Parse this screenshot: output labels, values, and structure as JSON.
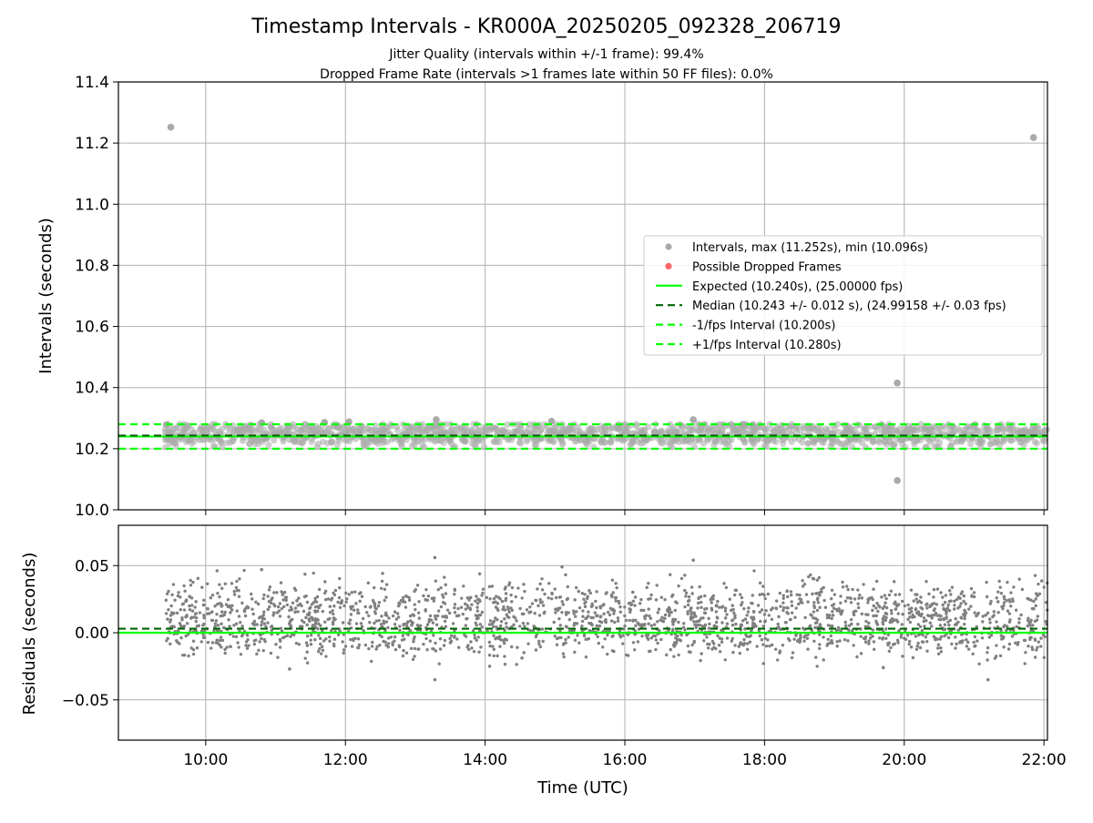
{
  "figure": {
    "title": "Timestamp Intervals - KR000A_20250205_092328_206719",
    "subtitle_1": "Jitter Quality (intervals within +/-1 frame): 99.4%",
    "subtitle_2": "Dropped Frame Rate (intervals >1 frames late within 50 FF files): 0.0%"
  },
  "colors": {
    "points": "#808080",
    "scatter_light": "#aaaaaa",
    "dropped": "#ff6666",
    "expected": "#00ff00",
    "median": "#006400",
    "bounds": "#00ff00",
    "grid": "#b0b0b0"
  },
  "chart_data": [
    {
      "type": "scatter",
      "ylabel": "Intervals (seconds)",
      "ylim": [
        10.0,
        11.4
      ],
      "yticks": [
        "10.0",
        "10.2",
        "10.4",
        "10.6",
        "10.8",
        "11.0",
        "11.2",
        "11.4"
      ],
      "ytick_values": [
        10.0,
        10.2,
        10.4,
        10.6,
        10.8,
        11.0,
        11.2,
        11.4
      ],
      "grid": true,
      "legend_position": "center-right",
      "legend": [
        "Intervals, max (11.252s), min (10.096s)",
        "Possible Dropped Frames",
        "Expected (10.240s), (25.00000 fps)",
        "Median (10.243 +/- 0.012 s), (24.99158 +/- 0.03 fps)",
        "-1/fps Interval (10.200s)",
        "+1/fps Interval (10.280s)"
      ],
      "hlines": {
        "expected": 10.24,
        "median": 10.243,
        "minus_1fps": 10.2,
        "plus_1fps": 10.28
      },
      "x_range_hours": [
        9.42,
        22.05
      ],
      "band_range": [
        10.205,
        10.28
      ],
      "outliers": [
        {
          "t": 9.5,
          "v": 11.252
        },
        {
          "t": 21.85,
          "v": 11.218
        },
        {
          "t": 19.9,
          "v": 10.415
        },
        {
          "t": 19.9,
          "v": 10.096
        },
        {
          "t": 13.3,
          "v": 10.295
        },
        {
          "t": 16.98,
          "v": 10.295
        },
        {
          "t": 14.95,
          "v": 10.29
        },
        {
          "t": 12.05,
          "v": 10.288
        },
        {
          "t": 10.8,
          "v": 10.285
        },
        {
          "t": 11.7,
          "v": 10.286
        }
      ]
    },
    {
      "type": "scatter",
      "xlabel": "Time (UTC)",
      "ylabel": "Residuals (seconds)",
      "ylim": [
        -0.08,
        0.08
      ],
      "yticks": [
        "−0.05",
        "0.00",
        "0.05"
      ],
      "ytick_values": [
        -0.05,
        0.0,
        0.05
      ],
      "xlim_hours": [
        8.75,
        22.05
      ],
      "xticks": [
        "10:00",
        "12:00",
        "14:00",
        "16:00",
        "18:00",
        "20:00",
        "22:00"
      ],
      "xtick_hours": [
        10,
        12,
        14,
        16,
        18,
        20,
        22
      ],
      "grid": true,
      "hlines": {
        "zero": 0.0,
        "median_offset": 0.003
      },
      "outliers": [
        {
          "t": 13.28,
          "v": 0.056
        },
        {
          "t": 16.98,
          "v": 0.054
        },
        {
          "t": 15.1,
          "v": 0.049
        },
        {
          "t": 10.8,
          "v": 0.047
        },
        {
          "t": 13.28,
          "v": -0.035
        },
        {
          "t": 21.2,
          "v": -0.035
        },
        {
          "t": 11.2,
          "v": -0.027
        },
        {
          "t": 19.7,
          "v": -0.026
        }
      ]
    }
  ]
}
